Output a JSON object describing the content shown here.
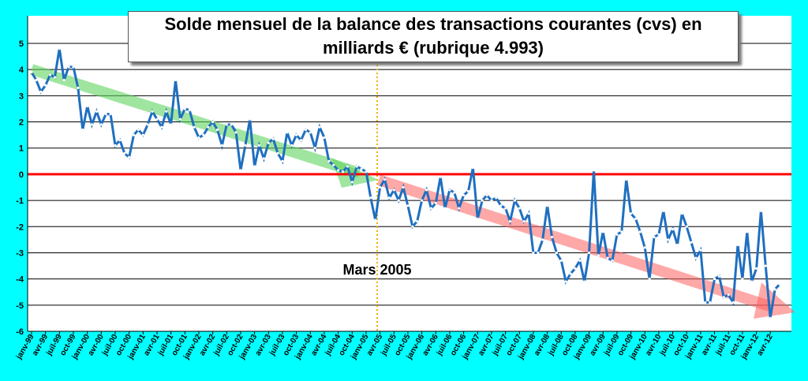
{
  "chart_data": {
    "type": "line",
    "title": "Solde mensuel de la balance des transactions courantes (cvs) en milliards € (rubrique 4.993)",
    "annotation": "Mars 2005",
    "categories": [
      "janv-99",
      null,
      null,
      "avr-99",
      null,
      null,
      "juil-99",
      null,
      null,
      "oct-99",
      null,
      null,
      "janv-00",
      null,
      null,
      "avr-00",
      null,
      null,
      "juil-00",
      null,
      null,
      "oct-00",
      null,
      null,
      "janv-01",
      null,
      null,
      "avr-01",
      null,
      null,
      "juil-01",
      null,
      null,
      "oct-01",
      null,
      null,
      "janv-02",
      null,
      null,
      "avr-02",
      null,
      null,
      "juil-02",
      null,
      null,
      "oct-02",
      null,
      null,
      "janv-03",
      null,
      null,
      "avr-03",
      null,
      null,
      "juil-03",
      null,
      null,
      "oct-03",
      null,
      null,
      "janv-04",
      null,
      null,
      "avr-04",
      null,
      null,
      "juil-04",
      null,
      null,
      "oct-04",
      null,
      null,
      "janv-05",
      null,
      null,
      "avr-05",
      null,
      null,
      "juil-05",
      null,
      null,
      "oct-05",
      null,
      null,
      "janv-06",
      null,
      null,
      "avr-06",
      null,
      null,
      "juil-06",
      null,
      null,
      "oct-06",
      null,
      null,
      "janv-07",
      null,
      null,
      "avr-07",
      null,
      null,
      "juil-07",
      null,
      null,
      "oct-07",
      null,
      null,
      "janv-08",
      null,
      null,
      "avr-08",
      null,
      null,
      "juil-08",
      null,
      null,
      "oct-08",
      null,
      null,
      "janv-09",
      null,
      null,
      "avr-09",
      null,
      null,
      "juil-09",
      null,
      null,
      "oct-09",
      null,
      null,
      "janv-10",
      null,
      null,
      "avr-10",
      null,
      null,
      "juil-10",
      null,
      null,
      "oct-10",
      null,
      null,
      "janv-11",
      null,
      null,
      "avr-11",
      null,
      null,
      "juil-11",
      null,
      null,
      "oct-11",
      null,
      null,
      "janv-12",
      null,
      null,
      "avr-12",
      null,
      null
    ],
    "values": [
      3.9,
      3.6,
      3.15,
      3.4,
      3.8,
      3.7,
      4.8,
      3.6,
      4.1,
      4.1,
      3.3,
      1.7,
      2.6,
      1.9,
      2.4,
      1.9,
      2.3,
      2.3,
      1.1,
      1.3,
      0.8,
      0.65,
      1.5,
      1.7,
      1.5,
      1.9,
      2.4,
      2.1,
      1.8,
      2.4,
      1.9,
      3.6,
      2.1,
      2.5,
      2.45,
      1.8,
      1.4,
      1.5,
      1.8,
      2.0,
      1.7,
      1.1,
      1.9,
      1.9,
      1.6,
      0.15,
      1.1,
      2.1,
      0.3,
      1.1,
      0.6,
      1.2,
      1.35,
      0.8,
      0.5,
      1.6,
      1.1,
      1.5,
      1.3,
      1.7,
      1.6,
      1.0,
      1.8,
      1.4,
      0.5,
      0.35,
      0.15,
      0.1,
      0.3,
      -0.3,
      0.3,
      0.2,
      0.1,
      -0.9,
      -1.75,
      -0.5,
      -0.2,
      -0.9,
      -0.6,
      -1.0,
      -0.5,
      -1.2,
      -2.0,
      -1.8,
      -1.0,
      -0.6,
      -1.3,
      -1.1,
      -0.1,
      -1.3,
      -0.6,
      -0.7,
      -1.3,
      -0.8,
      -0.65,
      0.25,
      -1.7,
      -1.0,
      -0.8,
      -1.0,
      -0.9,
      -1.2,
      -1.3,
      -1.8,
      -1.0,
      -1.3,
      -1.8,
      -1.5,
      -3.0,
      -3.0,
      -2.5,
      -1.2,
      -2.4,
      -3.0,
      -3.3,
      -4.1,
      -3.8,
      -3.6,
      -3.3,
      -4.1,
      -3.0,
      0.15,
      -3.1,
      -2.2,
      -3.2,
      -3.3,
      -2.3,
      -2.2,
      -0.2,
      -1.5,
      -1.7,
      -2.2,
      -2.8,
      -4.0,
      -2.4,
      -2.3,
      -1.4,
      -2.5,
      -2.1,
      -2.7,
      -1.5,
      -2.0,
      -2.6,
      -3.2,
      -2.9,
      -4.9,
      -4.9,
      -4.0,
      -3.9,
      -4.7,
      -4.6,
      -4.9,
      -2.7,
      -4.0,
      -2.2,
      -4.1,
      -3.6,
      -1.4,
      -3.5,
      -5.5,
      -4.4,
      -4.2
    ],
    "color": "#1f6fc0",
    "ylim": [
      -6,
      5
    ],
    "yticks": [
      -6,
      -5,
      -4,
      -3,
      -2,
      -1,
      0,
      1,
      2,
      3,
      4,
      5
    ],
    "grid": true,
    "zero_line_color": "#ff0000"
  }
}
